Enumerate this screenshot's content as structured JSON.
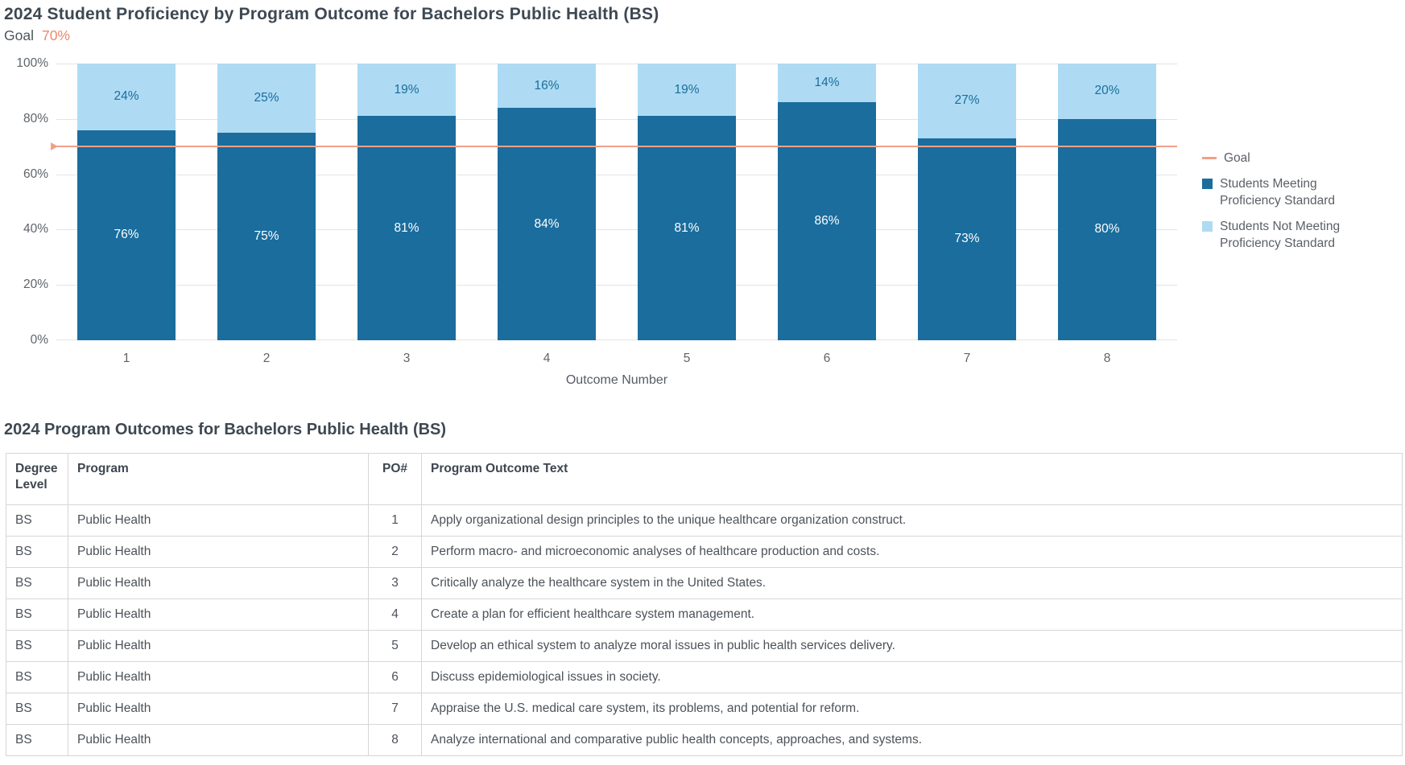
{
  "chart_section": {
    "title": "2024 Student Proficiency by Program Outcome for Bachelors Public Health (BS)",
    "goal_label": "Goal",
    "goal_value": "70%",
    "legend": {
      "goal": "Goal",
      "meeting": "Students Meeting Proficiency Standard",
      "not_meeting": "Students Not Meeting Proficiency Standard"
    }
  },
  "chart_data": {
    "type": "bar",
    "stacked": true,
    "title": "2024 Student Proficiency by Program Outcome for Bachelors Public Health (BS)",
    "categories": [
      "1",
      "2",
      "3",
      "4",
      "5",
      "6",
      "7",
      "8"
    ],
    "series": [
      {
        "name": "Students Meeting Proficiency Standard",
        "color": "#1A6D9D",
        "values": [
          76,
          75,
          81,
          84,
          81,
          86,
          73,
          80
        ]
      },
      {
        "name": "Students Not Meeting Proficiency Standard",
        "color": "#AEDBF3",
        "values": [
          24,
          25,
          19,
          16,
          19,
          14,
          27,
          20
        ]
      }
    ],
    "data_labels": {
      "meeting": [
        "76%",
        "75%",
        "81%",
        "84%",
        "81%",
        "86%",
        "73%",
        "80%"
      ],
      "not_meeting": [
        "24%",
        "25%",
        "19%",
        "16%",
        "19%",
        "14%",
        "27%",
        "20%"
      ]
    },
    "goal": 70,
    "xlabel": "Outcome Number",
    "ylabel": "",
    "ylim": [
      0,
      100
    ],
    "yticks": [
      {
        "value": 0,
        "label": "0%"
      },
      {
        "value": 20,
        "label": "20%"
      },
      {
        "value": 40,
        "label": "40%"
      },
      {
        "value": 60,
        "label": "60%"
      },
      {
        "value": 80,
        "label": "80%"
      },
      {
        "value": 100,
        "label": "100%"
      }
    ],
    "grid": true,
    "legend_position": "right"
  },
  "colors": {
    "dark_blue": "#1A6D9D",
    "light_blue": "#AEDBF3",
    "goal_line": "#F2A088",
    "goal_text": "#F0876C",
    "label_on_light": "#1A6D9D",
    "label_on_dark": "#FFFFFF"
  },
  "table_section": {
    "title": "2024 Program Outcomes for Bachelors Public Health (BS)",
    "columns": [
      "Degree Level",
      "Program",
      "PO#",
      "Program Outcome Text"
    ],
    "rows": [
      [
        "BS",
        "Public Health",
        "1",
        "Apply organizational design principles to the unique healthcare organization construct."
      ],
      [
        "BS",
        "Public Health",
        "2",
        "Perform macro- and microeconomic analyses of healthcare production and costs."
      ],
      [
        "BS",
        "Public Health",
        "3",
        "Critically analyze the healthcare system in the United States."
      ],
      [
        "BS",
        "Public Health",
        "4",
        "Create a plan for efficient healthcare system management."
      ],
      [
        "BS",
        "Public Health",
        "5",
        "Develop an ethical system to analyze moral issues in public health services delivery."
      ],
      [
        "BS",
        "Public Health",
        "6",
        "Discuss epidemiological issues in society."
      ],
      [
        "BS",
        "Public Health",
        "7",
        "Appraise the U.S. medical care system, its problems, and potential for reform."
      ],
      [
        "BS",
        "Public Health",
        "8",
        "Analyze international and comparative public health concepts, approaches, and systems."
      ]
    ]
  }
}
